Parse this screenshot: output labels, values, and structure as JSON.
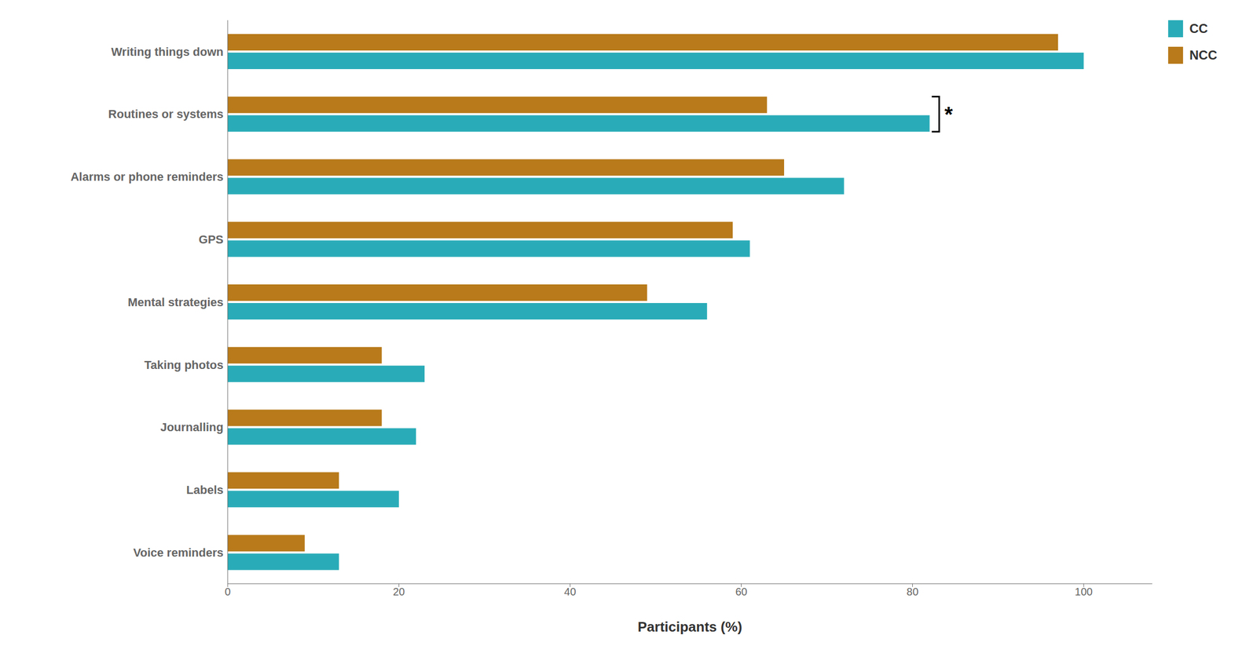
{
  "chart_data": {
    "type": "bar",
    "orientation": "horizontal",
    "categories": [
      "Writing things down",
      "Routines or systems",
      "Alarms or phone reminders",
      "GPS",
      "Mental strategies",
      "Taking photos",
      "Journalling",
      "Labels",
      "Voice reminders"
    ],
    "series": [
      {
        "name": "CC",
        "color": "#2AACB8",
        "values": [
          100,
          82,
          72,
          61,
          56,
          23,
          22,
          20,
          13
        ]
      },
      {
        "name": "NCC",
        "color": "#B87A1A",
        "values": [
          97,
          63,
          65,
          59,
          49,
          18,
          18,
          13,
          9
        ]
      }
    ],
    "xlabel": "Participants (%)",
    "xlim": [
      0,
      108
    ],
    "xticks": [
      0,
      20,
      40,
      60,
      80,
      100
    ],
    "grid": false,
    "legend": "upper right",
    "annotations": [
      {
        "text": "*",
        "category": "Routines or systems"
      }
    ]
  }
}
